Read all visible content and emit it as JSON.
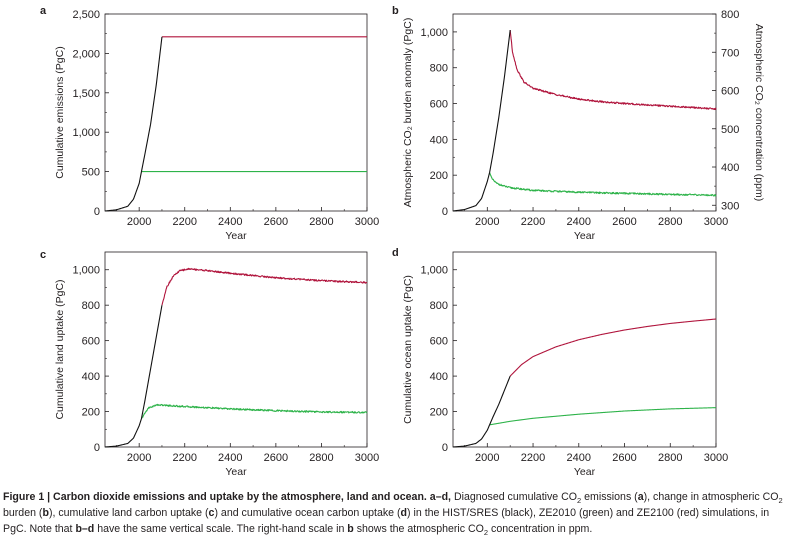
{
  "colors": {
    "hist": "#111111",
    "ze2010": "#2eb34a",
    "ze2100": "#b0143c",
    "axis": "#231f20"
  },
  "chart_data": [
    {
      "id": "a",
      "type": "line",
      "panel_label": "a",
      "xlabel": "Year",
      "ylabel": "Cumulative emissions (PgC)",
      "xlim": [
        1850,
        3000
      ],
      "ylim": [
        0,
        2500
      ],
      "xticks": [
        2000,
        2200,
        2400,
        2600,
        2800,
        3000
      ],
      "xtick_labels": [
        "2000",
        "2200",
        "2400",
        "2600",
        "2800",
        "3000"
      ],
      "yticks": [
        0,
        500,
        1000,
        1500,
        2000,
        2500
      ],
      "ytick_labels": [
        "0",
        "500",
        "1,000",
        "1,500",
        "2,000",
        "2,500"
      ],
      "series": [
        {
          "name": "HIST/SRES",
          "color_key": "hist",
          "x": [
            1850,
            1900,
            1950,
            1975,
            2000,
            2010,
            2025,
            2050,
            2075,
            2100
          ],
          "y": [
            0,
            15,
            60,
            150,
            350,
            500,
            720,
            1100,
            1600,
            2210
          ]
        },
        {
          "name": "ZE2010",
          "color_key": "ze2010",
          "x": [
            2010,
            3000
          ],
          "y": [
            500,
            500
          ]
        },
        {
          "name": "ZE2100",
          "color_key": "ze2100",
          "x": [
            2100,
            3000
          ],
          "y": [
            2210,
            2210
          ]
        }
      ]
    },
    {
      "id": "b",
      "type": "line",
      "panel_label": "b",
      "xlabel": "Year",
      "ylabel": "Atmospheric CO₂ burden anomaly (PgC)",
      "y2label": "Atmospheric CO₂ concentration (ppm)",
      "xlim": [
        1850,
        3000
      ],
      "ylim": [
        0,
        1100
      ],
      "xticks": [
        2000,
        2200,
        2400,
        2600,
        2800,
        3000
      ],
      "xtick_labels": [
        "2000",
        "2200",
        "2400",
        "2600",
        "2800",
        "3000"
      ],
      "yticks": [
        0,
        200,
        400,
        600,
        800,
        1000
      ],
      "ytick_labels": [
        "0",
        "200",
        "400",
        "600",
        "800",
        "1,000"
      ],
      "y2lim": [
        285,
        800
      ],
      "y2ticks": [
        300,
        400,
        500,
        600,
        700,
        800
      ],
      "y2tick_labels": [
        "300",
        "400",
        "500",
        "600",
        "700",
        "800"
      ],
      "series": [
        {
          "name": "HIST/SRES",
          "color_key": "hist",
          "x": [
            1850,
            1900,
            1950,
            1975,
            2000,
            2010,
            2025,
            2050,
            2075,
            2100
          ],
          "y": [
            0,
            8,
            30,
            70,
            165,
            215,
            320,
            520,
            750,
            1010
          ]
        },
        {
          "name": "ZE2010",
          "color_key": "ze2010",
          "x": [
            2010,
            2020,
            2040,
            2070,
            2100,
            2200,
            2400,
            2600,
            2800,
            3000
          ],
          "y": [
            215,
            180,
            155,
            140,
            130,
            115,
            105,
            98,
            93,
            88
          ]
        },
        {
          "name": "ZE2100",
          "color_key": "ze2100",
          "x": [
            2100,
            2110,
            2130,
            2160,
            2200,
            2300,
            2400,
            2500,
            2600,
            2800,
            3000
          ],
          "y": [
            1010,
            890,
            790,
            720,
            685,
            650,
            625,
            610,
            600,
            585,
            570
          ]
        }
      ]
    },
    {
      "id": "c",
      "type": "line",
      "panel_label": "c",
      "xlabel": "Year",
      "ylabel": "Cumulative land uptake (PgC)",
      "xlim": [
        1850,
        3000
      ],
      "ylim": [
        0,
        1100
      ],
      "xticks": [
        2000,
        2200,
        2400,
        2600,
        2800,
        3000
      ],
      "xtick_labels": [
        "2000",
        "2200",
        "2400",
        "2600",
        "2800",
        "3000"
      ],
      "yticks": [
        0,
        200,
        400,
        600,
        800,
        1000
      ],
      "ytick_labels": [
        "0",
        "200",
        "400",
        "600",
        "800",
        "1,000"
      ],
      "series": [
        {
          "name": "HIST/SRES",
          "color_key": "hist",
          "x": [
            1850,
            1900,
            1950,
            1975,
            2000,
            2010,
            2025,
            2050,
            2075,
            2100
          ],
          "y": [
            0,
            5,
            20,
            50,
            120,
            160,
            260,
            440,
            620,
            800
          ]
        },
        {
          "name": "ZE2010",
          "color_key": "ze2010",
          "x": [
            2010,
            2040,
            2080,
            2150,
            2250,
            2400,
            2600,
            2800,
            3000
          ],
          "y": [
            160,
            220,
            238,
            232,
            225,
            215,
            205,
            198,
            195
          ]
        },
        {
          "name": "ZE2100",
          "color_key": "ze2100",
          "x": [
            2100,
            2120,
            2150,
            2180,
            2220,
            2300,
            2400,
            2600,
            2800,
            3000
          ],
          "y": [
            800,
            900,
            965,
            995,
            1005,
            995,
            980,
            955,
            938,
            928
          ]
        }
      ]
    },
    {
      "id": "d",
      "type": "line",
      "panel_label": "d",
      "xlabel": "Year",
      "ylabel": "Cumulative ocean uptake (PgC)",
      "xlim": [
        1850,
        3000
      ],
      "ylim": [
        0,
        1100
      ],
      "xticks": [
        2000,
        2200,
        2400,
        2600,
        2800,
        3000
      ],
      "xtick_labels": [
        "2000",
        "2200",
        "2400",
        "2600",
        "2800",
        "3000"
      ],
      "yticks": [
        0,
        200,
        400,
        600,
        800,
        1000
      ],
      "ytick_labels": [
        "0",
        "200",
        "400",
        "600",
        "800",
        "1,000"
      ],
      "series": [
        {
          "name": "HIST/SRES",
          "color_key": "hist",
          "x": [
            1850,
            1900,
            1950,
            1975,
            2000,
            2010,
            2025,
            2050,
            2075,
            2100
          ],
          "y": [
            0,
            5,
            20,
            45,
            95,
            125,
            170,
            240,
            320,
            400
          ]
        },
        {
          "name": "ZE2010",
          "color_key": "ze2010",
          "x": [
            2010,
            2100,
            2200,
            2400,
            2600,
            2800,
            3000
          ],
          "y": [
            125,
            145,
            162,
            185,
            203,
            215,
            222
          ]
        },
        {
          "name": "ZE2100",
          "color_key": "ze2100",
          "x": [
            2100,
            2150,
            2200,
            2300,
            2400,
            2500,
            2600,
            2700,
            2800,
            2900,
            3000
          ],
          "y": [
            400,
            465,
            510,
            565,
            605,
            635,
            660,
            680,
            697,
            710,
            722
          ]
        }
      ]
    }
  ],
  "caption": {
    "heading": "Figure 1 | Carbon dioxide emissions and uptake by the atmosphere, land and ocean. a–d,",
    "segments": [
      {
        "t": " Diagnosed cumulative CO"
      },
      {
        "t": "2",
        "sub": true
      },
      {
        "t": " emissions ("
      },
      {
        "t": "a",
        "b": true
      },
      {
        "t": "), change in atmospheric CO"
      },
      {
        "t": "2",
        "sub": true
      },
      {
        "t": " burden ("
      },
      {
        "t": "b",
        "b": true
      },
      {
        "t": "), cumulative land carbon uptake ("
      },
      {
        "t": "c",
        "b": true
      },
      {
        "t": ") and cumulative ocean carbon uptake ("
      },
      {
        "t": "d",
        "b": true
      },
      {
        "t": ") in the HIST/SRES (black), ZE2010 (green) and ZE2100 (red) simulations, in PgC. Note that "
      },
      {
        "t": "b–d",
        "b": true
      },
      {
        "t": " have the same vertical scale. The right-hand scale in "
      },
      {
        "t": "b",
        "b": true
      },
      {
        "t": " shows the atmospheric CO"
      },
      {
        "t": "2",
        "sub": true
      },
      {
        "t": " concentration in ppm."
      }
    ]
  }
}
